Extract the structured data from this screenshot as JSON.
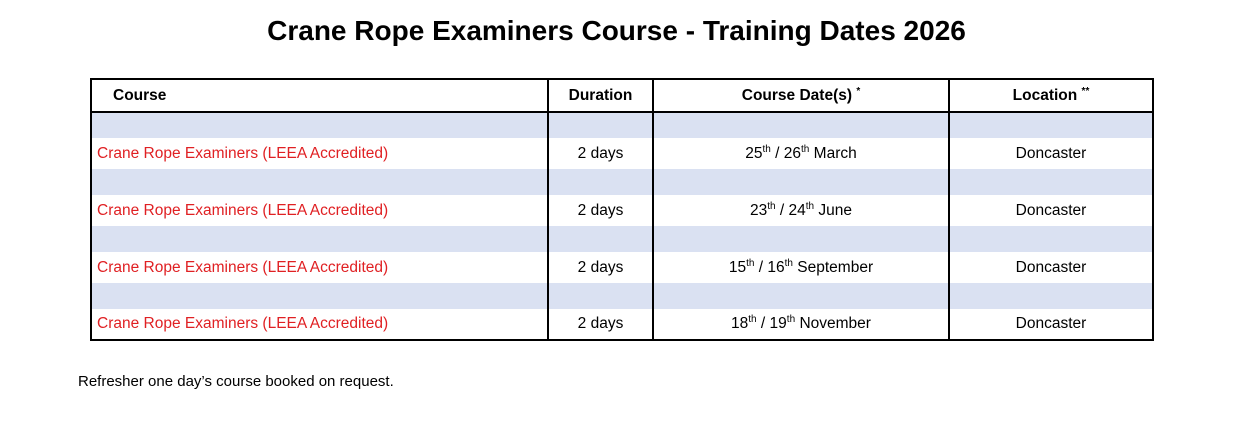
{
  "page": {
    "title": "Crane Rope Examiners Course - Training Dates 2026",
    "footnote": "Refresher one day’s course booked on request."
  },
  "colors": {
    "course_text_red": "#e02023",
    "band_blue": "#dae1f2",
    "border_black": "#000000"
  },
  "table": {
    "headers": {
      "course": "Course",
      "duration": "Duration",
      "dates": "Course Date(s)",
      "dates_mark": "*",
      "location": "Location",
      "location_mark": "**"
    },
    "rows": [
      {
        "course": "Crane Rope Examiners (LEEA Accredited)",
        "duration": "2 days",
        "date": {
          "day1": "25",
          "suffix1": "th",
          "separator": " / ",
          "day2": "26",
          "suffix2": "th",
          "month": " March"
        },
        "location": "Doncaster"
      },
      {
        "course": "Crane Rope Examiners (LEEA Accredited)",
        "duration": "2 days",
        "date": {
          "day1": "23",
          "suffix1": "th",
          "separator": " / ",
          "day2": "24",
          "suffix2": "th",
          "month": " June"
        },
        "location": "Doncaster"
      },
      {
        "course": "Crane Rope Examiners (LEEA Accredited)",
        "duration": "2 days",
        "date": {
          "day1": "15",
          "suffix1": "th",
          "separator": " / ",
          "day2": "16",
          "suffix2": "th",
          "month": " September"
        },
        "location": "Doncaster"
      },
      {
        "course": "Crane Rope Examiners (LEEA Accredited)",
        "duration": "2 days",
        "date": {
          "day1": "18",
          "suffix1": "th",
          "separator": " / ",
          "day2": "19",
          "suffix2": "th",
          "month": " November"
        },
        "location": "Doncaster"
      }
    ]
  }
}
